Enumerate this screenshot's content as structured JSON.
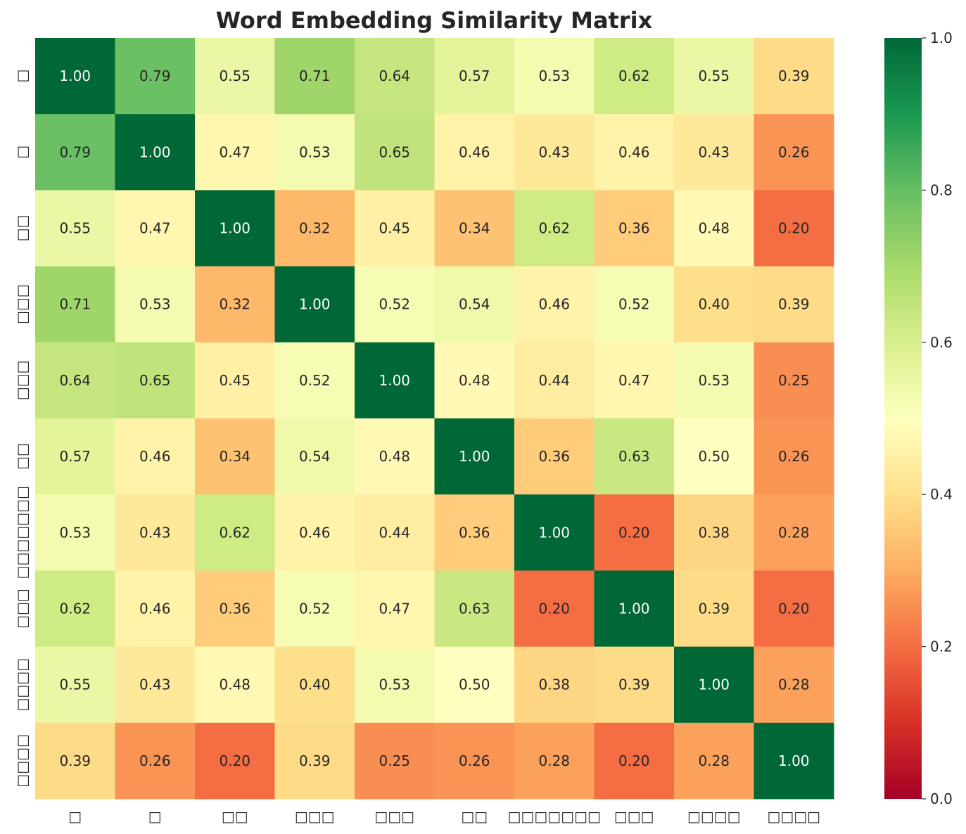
{
  "chart_data": {
    "type": "heatmap",
    "title": "Word Embedding Similarity Matrix",
    "x_tick_labels": [
      "□",
      "□",
      "□□",
      "□□□",
      "□□□",
      "□□",
      "□□□□□□□",
      "□□□",
      "□□□□",
      "□□□□"
    ],
    "y_tick_labels": [
      "□",
      "□",
      "□□",
      "□□□",
      "□□□",
      "□□",
      "□□□□□□□",
      "□□□",
      "□□□□",
      "□□□□"
    ],
    "values": [
      [
        1.0,
        0.79,
        0.55,
        0.71,
        0.64,
        0.57,
        0.53,
        0.62,
        0.55,
        0.39
      ],
      [
        0.79,
        1.0,
        0.47,
        0.53,
        0.65,
        0.46,
        0.43,
        0.46,
        0.43,
        0.26
      ],
      [
        0.55,
        0.47,
        1.0,
        0.32,
        0.45,
        0.34,
        0.62,
        0.36,
        0.48,
        0.2
      ],
      [
        0.71,
        0.53,
        0.32,
        1.0,
        0.52,
        0.54,
        0.46,
        0.52,
        0.4,
        0.39
      ],
      [
        0.64,
        0.65,
        0.45,
        0.52,
        1.0,
        0.48,
        0.44,
        0.47,
        0.53,
        0.25
      ],
      [
        0.57,
        0.46,
        0.34,
        0.54,
        0.48,
        1.0,
        0.36,
        0.63,
        0.5,
        0.26
      ],
      [
        0.53,
        0.43,
        0.62,
        0.46,
        0.44,
        0.36,
        1.0,
        0.2,
        0.38,
        0.28
      ],
      [
        0.62,
        0.46,
        0.36,
        0.52,
        0.47,
        0.63,
        0.2,
        1.0,
        0.39,
        0.2
      ],
      [
        0.55,
        0.43,
        0.48,
        0.4,
        0.53,
        0.5,
        0.38,
        0.39,
        1.0,
        0.28
      ],
      [
        0.39,
        0.26,
        0.2,
        0.39,
        0.25,
        0.26,
        0.28,
        0.2,
        0.28,
        1.0
      ]
    ],
    "value_format": "0.00",
    "colormap": "RdYlGn",
    "vmin": 0.0,
    "vmax": 1.0,
    "colorbar_ticks": [
      "0.0",
      "0.2",
      "0.4",
      "0.6",
      "0.8",
      "1.0"
    ],
    "colorbar_tick_values": [
      0.0,
      0.2,
      0.4,
      0.6,
      0.8,
      1.0
    ],
    "colormap_stops": [
      "#a50026",
      "#d73027",
      "#f46d43",
      "#fdae61",
      "#fee08b",
      "#ffffbf",
      "#d9ef8b",
      "#a6d96a",
      "#66bd63",
      "#1a9850",
      "#006837"
    ],
    "grid": false
  }
}
